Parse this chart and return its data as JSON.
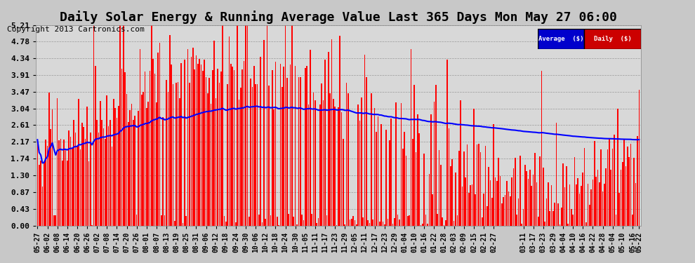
{
  "title": "Daily Solar Energy & Running Average Value Last 365 Days Mon May 27 06:00",
  "copyright_text": "Copyright 2013 Cartronics.com",
  "bg_color": "#c8c8c8",
  "plot_bg_color": "#d8d8d8",
  "bar_color": "#ff0000",
  "avg_color": "#0000ff",
  "yticks": [
    0.0,
    0.43,
    0.87,
    1.3,
    1.74,
    2.17,
    2.61,
    3.04,
    3.47,
    3.91,
    4.34,
    4.78,
    5.21
  ],
  "ymax": 5.21,
  "ymin": 0.0,
  "n_days": 365,
  "legend_avg_color": "#0000cc",
  "legend_daily_color": "#cc0000",
  "legend_text_color": "#ffffff",
  "title_fontsize": 13,
  "copyright_fontsize": 8,
  "xtick_labels": [
    "05-27",
    "06-02",
    "06-08",
    "06-14",
    "06-20",
    "06-26",
    "07-02",
    "07-08",
    "07-14",
    "07-20",
    "07-26",
    "08-01",
    "08-07",
    "08-13",
    "08-19",
    "08-25",
    "08-31",
    "09-06",
    "09-12",
    "09-18",
    "09-24",
    "09-30",
    "10-06",
    "10-12",
    "10-18",
    "10-24",
    "10-30",
    "11-05",
    "11-11",
    "11-17",
    "11-23",
    "11-29",
    "12-05",
    "12-11",
    "12-17",
    "12-23",
    "12-29",
    "01-04",
    "01-10",
    "01-16",
    "01-22",
    "01-28",
    "02-03",
    "02-09",
    "02-15",
    "02-21",
    "02-27",
    "03-11",
    "03-17",
    "03-23",
    "03-29",
    "04-04",
    "04-10",
    "04-16",
    "04-22",
    "04-28",
    "05-04",
    "05-10",
    "05-16",
    "05-22"
  ],
  "xtick_positions": [
    0,
    6,
    12,
    18,
    24,
    30,
    36,
    42,
    48,
    54,
    60,
    66,
    72,
    78,
    84,
    90,
    96,
    102,
    108,
    114,
    120,
    126,
    132,
    138,
    144,
    150,
    156,
    162,
    168,
    174,
    180,
    186,
    192,
    198,
    204,
    210,
    216,
    222,
    228,
    234,
    240,
    246,
    252,
    258,
    264,
    270,
    276,
    294,
    300,
    306,
    312,
    318,
    324,
    330,
    336,
    342,
    348,
    354,
    360,
    364
  ]
}
